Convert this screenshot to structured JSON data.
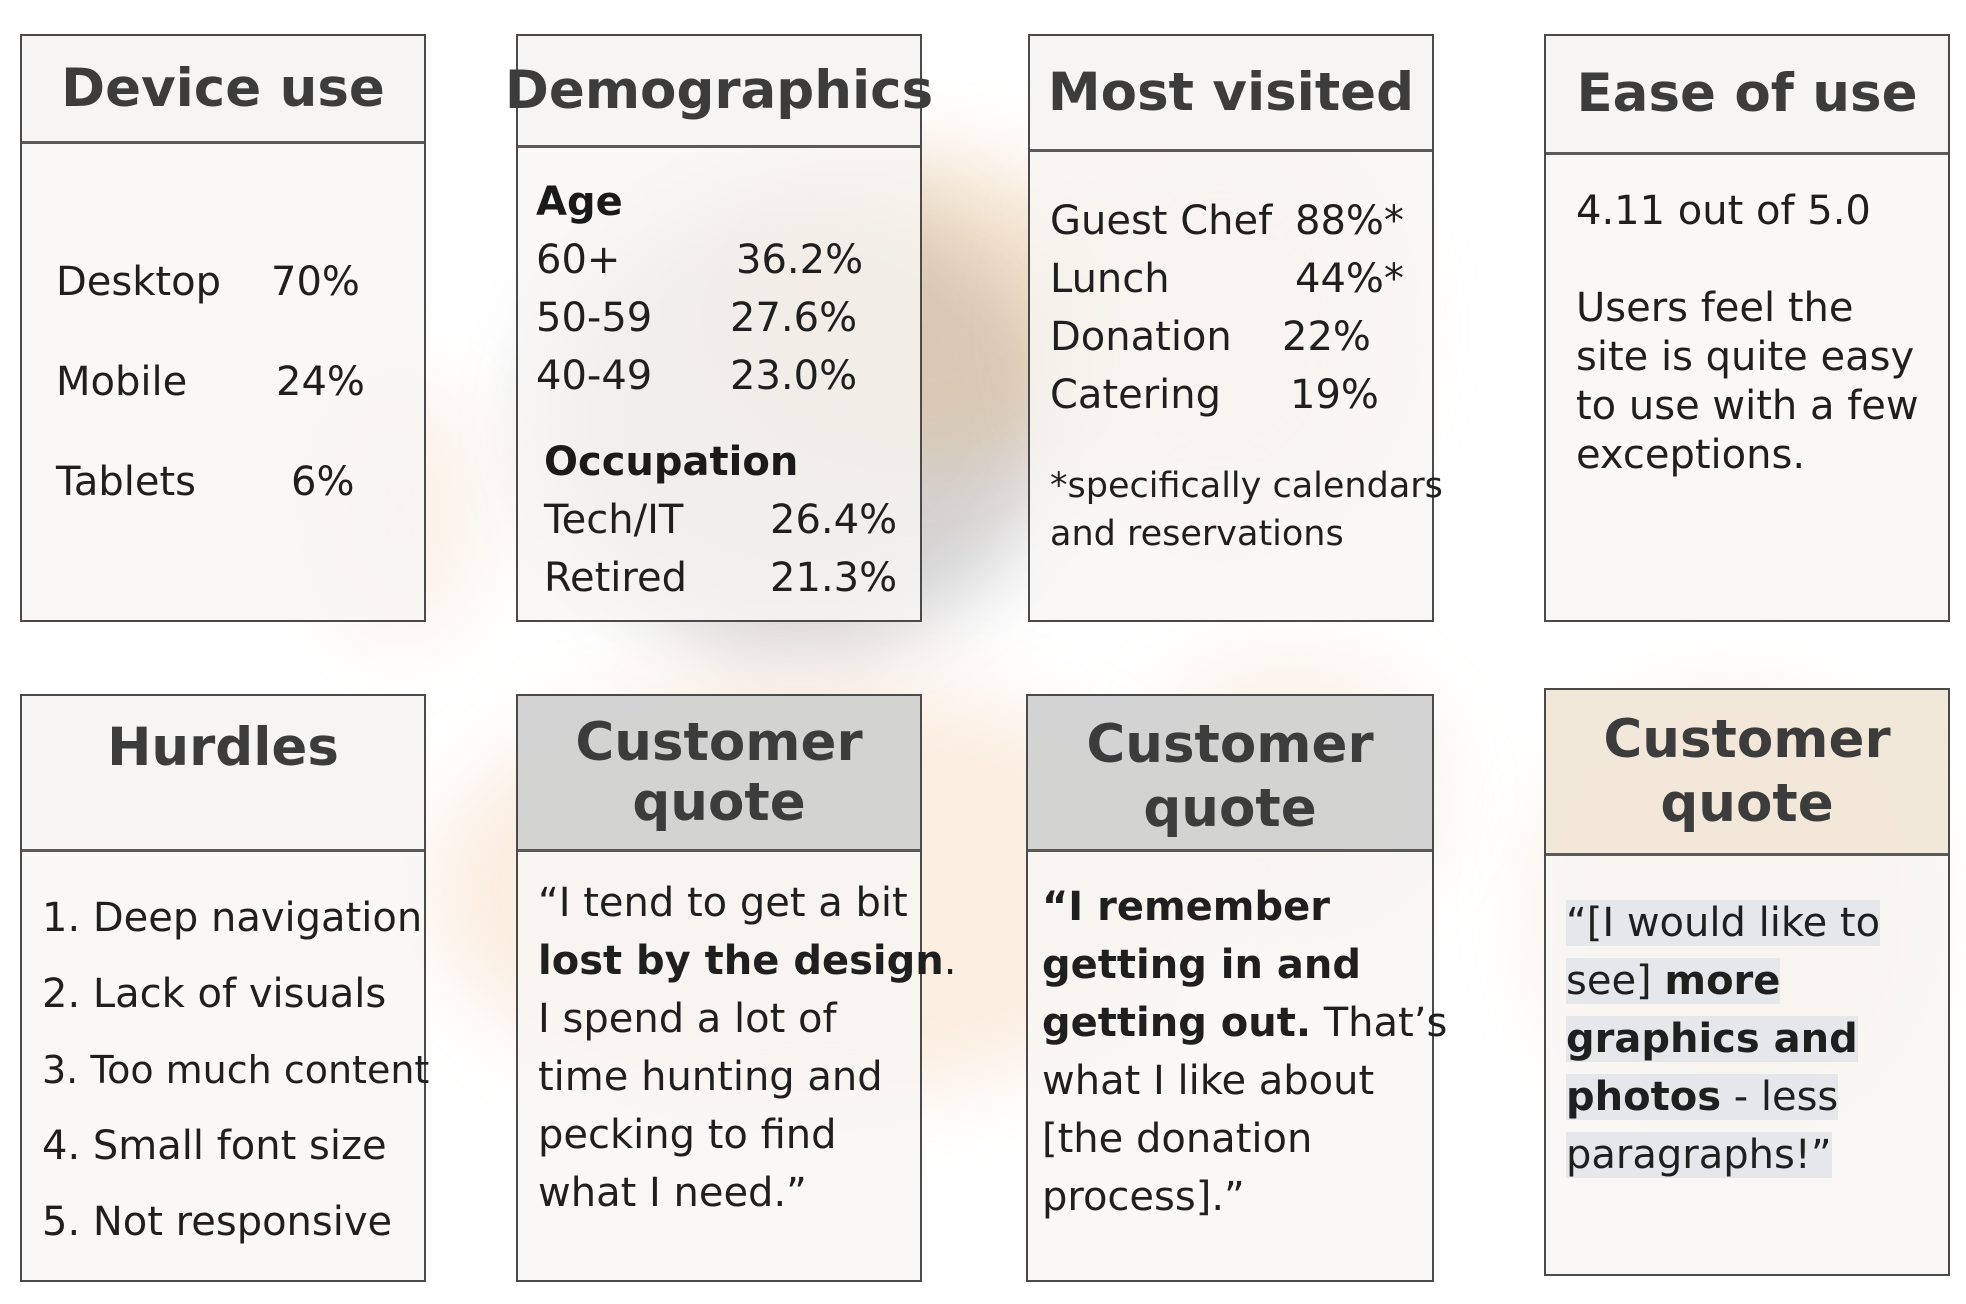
{
  "device_use": {
    "title": "Device use",
    "rows": [
      {
        "label": "Desktop",
        "value": "70%"
      },
      {
        "label": "Mobile",
        "value": "24%"
      },
      {
        "label": "Tablets",
        "value": "6%"
      }
    ]
  },
  "demographics": {
    "title": "Demographics",
    "age_heading": "Age",
    "age_rows": [
      {
        "label": "60+",
        "value": "36.2%"
      },
      {
        "label": "50-59",
        "value": "27.6%"
      },
      {
        "label": "40-49",
        "value": "23.0%"
      }
    ],
    "occupation_heading": "Occupation",
    "occupation_rows": [
      {
        "label": "Tech/IT",
        "value": "26.4%"
      },
      {
        "label": "Retired",
        "value": "21.3%"
      }
    ]
  },
  "most_visited": {
    "title": "Most visited",
    "rows": [
      {
        "label": "Guest Chef",
        "value": "88%*"
      },
      {
        "label": "Lunch",
        "value": "44%*"
      },
      {
        "label": "Donation",
        "value": "22%"
      },
      {
        "label": "Catering",
        "value": "19%"
      }
    ],
    "footnote_line1": "*specifically calendars",
    "footnote_line2": "and reservations"
  },
  "ease_of_use": {
    "title": "Ease of use",
    "score": "4.11 out of 5.0",
    "lines": [
      "Users feel the",
      "site is quite easy",
      "to use with a few",
      "exceptions."
    ]
  },
  "hurdles": {
    "title": "Hurdles",
    "items": [
      "1. Deep navigation",
      "2. Lack of visuals",
      "3. Too much content",
      "4. Small font size",
      "5. Not responsive"
    ]
  },
  "quote1": {
    "title_line1": "Customer",
    "title_line2": "quote",
    "l1": "“I tend to get a bit",
    "l2_bold": "lost by the design",
    "l2_rest": ".",
    "l3": "I spend a lot of",
    "l4": "time hunting and",
    "l5": "pecking to find",
    "l6": "what I need.”"
  },
  "quote2": {
    "title_line1": "Customer",
    "title_line2": "quote",
    "l1_bold": "“I remember",
    "l2_bold": "getting in and",
    "l3_bold": "getting out.",
    "l3_rest": " That’s",
    "l4": "what I like about",
    "l5": "[the donation",
    "l6": "process].”"
  },
  "quote3": {
    "title_line1": "Customer",
    "title_line2": "quote",
    "l1": "“[I would like to",
    "l2_start": "see] ",
    "l2_bold": "more",
    "l3_bold": "graphics and",
    "l4_bold": "photos",
    "l4_rest": " -  less",
    "l5": "paragraphs!”"
  }
}
